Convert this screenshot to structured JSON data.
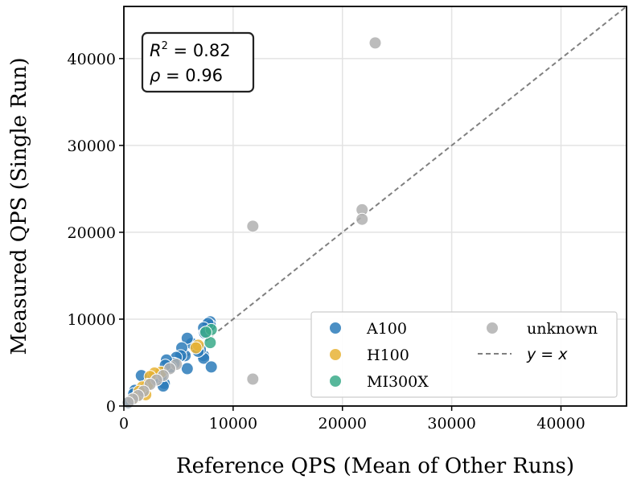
{
  "chart_data": {
    "type": "scatter",
    "title": "",
    "xlabel": "Reference QPS (Mean of Other Runs)",
    "ylabel": "Measured QPS (Single Run)",
    "xlim": [
      0,
      46000
    ],
    "ylim": [
      0,
      46000
    ],
    "xticks": [
      0,
      10000,
      20000,
      30000,
      40000
    ],
    "yticks": [
      0,
      10000,
      20000,
      30000,
      40000
    ],
    "grid": true,
    "legend_placement": "lower-right, two columns",
    "annotations": {
      "r2_label": "R",
      "r2_sup": "2",
      "r2_value": " = 0.82",
      "rho_label": "ρ",
      "rho_value": " = 0.96"
    },
    "reference_line": {
      "name": "y = x",
      "label_prefix": "y",
      "label_eq": " = ",
      "label_suffix": "x",
      "color": "#808080",
      "style": "dashed"
    },
    "series": [
      {
        "name": "A100",
        "color": "#2b7bba",
        "points": [
          [
            7900,
            9700
          ],
          [
            7900,
            9300
          ],
          [
            7700,
            9500
          ],
          [
            7300,
            9000
          ],
          [
            7400,
            8400
          ],
          [
            7300,
            5800
          ],
          [
            7300,
            5500
          ],
          [
            8000,
            4500
          ],
          [
            7000,
            6500
          ],
          [
            6800,
            6300
          ],
          [
            6200,
            7200
          ],
          [
            5800,
            7800
          ],
          [
            5600,
            5800
          ],
          [
            5800,
            4300
          ],
          [
            5300,
            6700
          ],
          [
            5200,
            5800
          ],
          [
            4800,
            5600
          ],
          [
            4600,
            4900
          ],
          [
            4300,
            4500
          ],
          [
            3900,
            5300
          ],
          [
            3800,
            4700
          ],
          [
            3700,
            2600
          ],
          [
            3600,
            2300
          ],
          [
            3400,
            3500
          ],
          [
            3000,
            3300
          ],
          [
            2600,
            2900
          ],
          [
            2300,
            3200
          ],
          [
            2100,
            2300
          ],
          [
            1900,
            2000
          ],
          [
            1600,
            3500
          ],
          [
            1500,
            1600
          ],
          [
            1200,
            1100
          ],
          [
            1000,
            1800
          ],
          [
            900,
            1400
          ],
          [
            800,
            700
          ],
          [
            600,
            500
          ],
          [
            400,
            300
          ]
        ]
      },
      {
        "name": "H100",
        "color": "#e8b335",
        "points": [
          [
            6800,
            7000
          ],
          [
            6600,
            6700
          ],
          [
            3400,
            3900
          ],
          [
            2800,
            3800
          ],
          [
            2400,
            3400
          ],
          [
            2200,
            2500
          ],
          [
            2000,
            1300
          ],
          [
            1700,
            2200
          ],
          [
            1400,
            1700
          ],
          [
            1100,
            1000
          ]
        ]
      },
      {
        "name": "MI300X",
        "color": "#3aaa8a",
        "points": [
          [
            8000,
            8800
          ],
          [
            7900,
            7300
          ],
          [
            7500,
            8500
          ]
        ]
      },
      {
        "name": "unknown",
        "color": "#b0b0b0",
        "points": [
          [
            23000,
            41800
          ],
          [
            21800,
            22600
          ],
          [
            21800,
            21500
          ],
          [
            11800,
            20700
          ],
          [
            11800,
            3100
          ],
          [
            4800,
            4800
          ],
          [
            4200,
            4300
          ],
          [
            3600,
            3500
          ],
          [
            3000,
            3000
          ],
          [
            2400,
            2500
          ],
          [
            1800,
            1700
          ],
          [
            1300,
            1200
          ],
          [
            800,
            800
          ],
          [
            400,
            400
          ]
        ]
      }
    ]
  }
}
